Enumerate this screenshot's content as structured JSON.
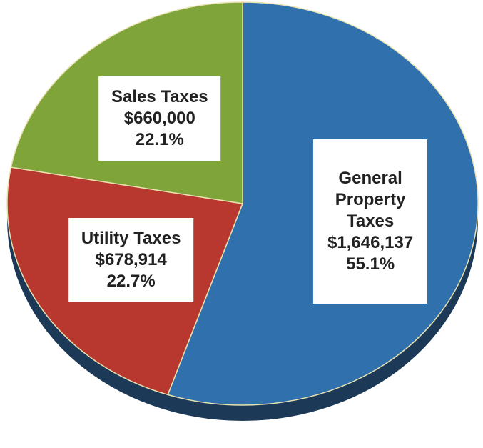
{
  "chart_data": {
    "type": "pie",
    "categories": [
      "General Property Taxes",
      "Utility Taxes",
      "Sales Taxes"
    ],
    "values": [
      1646137,
      678914,
      660000
    ],
    "value_labels": [
      "$1,646,137",
      "$678,914",
      "$660,000"
    ],
    "percent_labels": [
      "55.1%",
      "22.7%",
      "22.1%"
    ],
    "colors": [
      "#2f70ad",
      "#b8382f",
      "#7ea43a"
    ],
    "start_angle": "top",
    "direction": "clockwise"
  }
}
